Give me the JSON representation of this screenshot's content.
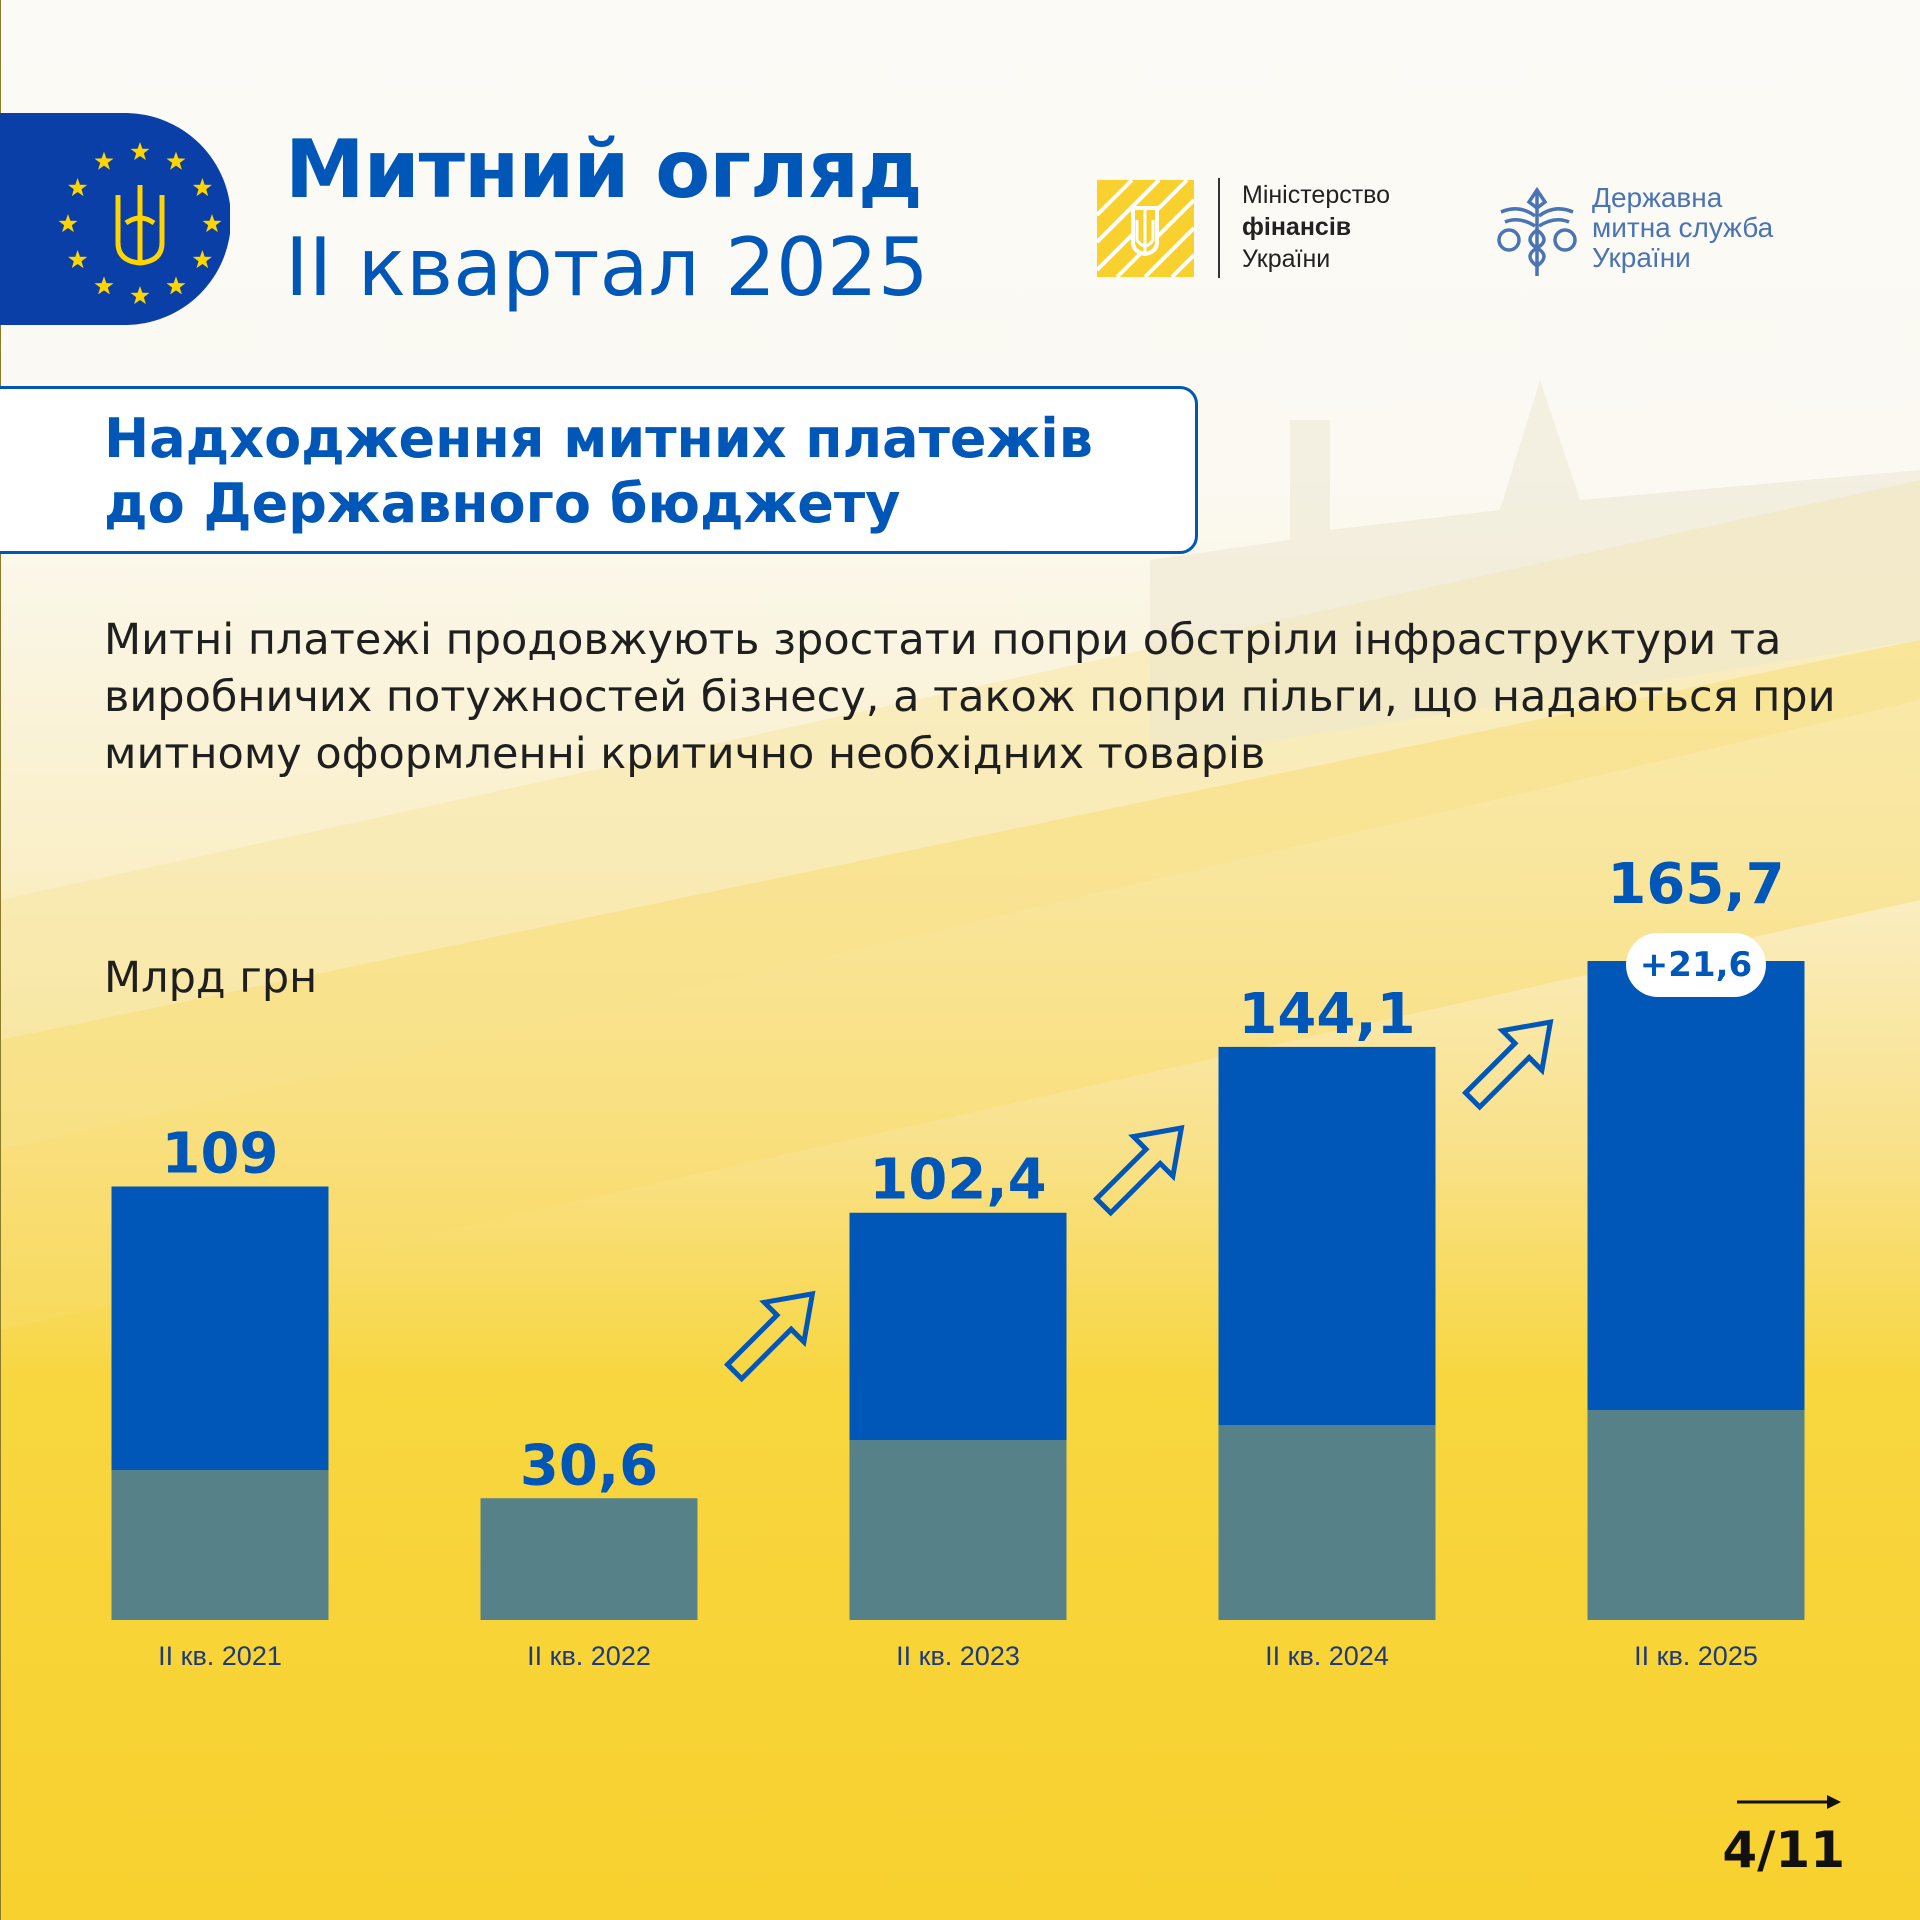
{
  "header": {
    "title_line1": "Митний огляд",
    "title_line2": "ІІ квартал 2025",
    "minfin": {
      "line1": "Міністерство",
      "line2": "фінансів",
      "line3": "України"
    },
    "dms": {
      "line1": "Державна",
      "line2": "митна служба",
      "line3": "України"
    }
  },
  "section": {
    "title_line1": "Надходження митних платежів",
    "title_line2": "до Державного бюджету"
  },
  "description": "Митні платежі продовжують зростати попри обстріли інфраструктури та виробничих потужностей бізнесу, а також попри пільги, що надаються при митному оформленні критично необхідних товарів",
  "chart_data": {
    "type": "bar",
    "ylabel": "Млрд грн",
    "categories": [
      "ІІ кв. 2021",
      "ІІ кв. 2022",
      "ІІ кв. 2023",
      "ІІ кв. 2024",
      "ІІ кв. 2025"
    ],
    "values": [
      109,
      30.6,
      102.4,
      144.1,
      165.7
    ],
    "value_labels": [
      "109",
      "30,6",
      "102,4",
      "144,1",
      "165,7"
    ],
    "ylim": [
      0,
      165.7
    ],
    "annotation": "+21,6",
    "growth_arrows_before": [
      2,
      3,
      4
    ],
    "grid": false,
    "colors": {
      "bar": "#0057b8",
      "background": "#f8d12e"
    }
  },
  "footer": {
    "page": "4/11"
  },
  "colors": {
    "brand_blue": "#0057b8",
    "yellow": "#f8d12e",
    "eu_blue": "#0b3fa8",
    "eu_star": "#ffd500"
  }
}
